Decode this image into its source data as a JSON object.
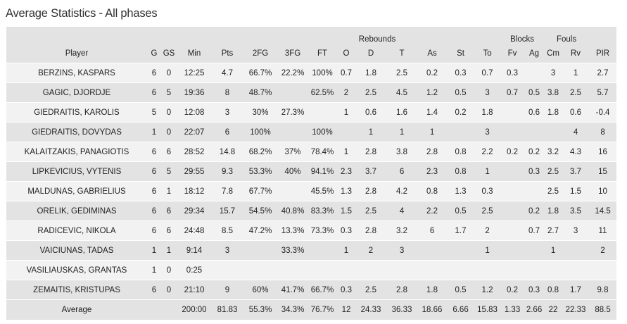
{
  "title": "Average Statistics - All phases",
  "groups": {
    "rebounds": "Rebounds",
    "blocks": "Blocks",
    "fouls": "Fouls"
  },
  "columns": [
    "Player",
    "G",
    "GS",
    "Min",
    "Pts",
    "2FG",
    "3FG",
    "FT",
    "O",
    "D",
    "T",
    "As",
    "St",
    "To",
    "Fv",
    "Ag",
    "Cm",
    "Rv",
    "PIR"
  ],
  "rows": [
    [
      "BERZINS, KASPARS",
      "6",
      "0",
      "12:25",
      "4.7",
      "66.7%",
      "22.2%",
      "100%",
      "0.7",
      "1.8",
      "2.5",
      "0.2",
      "0.3",
      "0.7",
      "0.3",
      "",
      "3",
      "1",
      "2.7"
    ],
    [
      "GAGIC, DJORDJE",
      "6",
      "5",
      "19:36",
      "8",
      "48.7%",
      "",
      "62.5%",
      "2",
      "2.5",
      "4.5",
      "1.2",
      "0.5",
      "3",
      "0.7",
      "0.5",
      "3.8",
      "2.5",
      "5.7"
    ],
    [
      "GIEDRAITIS, KAROLIS",
      "5",
      "0",
      "12:08",
      "3",
      "30%",
      "27.3%",
      "",
      "1",
      "0.6",
      "1.6",
      "1.4",
      "0.2",
      "1.8",
      "",
      "0.6",
      "1.8",
      "0.6",
      "-0.4"
    ],
    [
      "GIEDRAITIS, DOVYDAS",
      "1",
      "0",
      "22:07",
      "6",
      "100%",
      "",
      "100%",
      "",
      "1",
      "1",
      "1",
      "",
      "3",
      "",
      "",
      "",
      "4",
      "8"
    ],
    [
      "KALAITZAKIS, PANAGIOTIS",
      "6",
      "6",
      "28:52",
      "14.8",
      "68.2%",
      "37%",
      "78.4%",
      "1",
      "2.8",
      "3.8",
      "2.8",
      "0.8",
      "2.2",
      "0.2",
      "0.2",
      "3.2",
      "4.3",
      "16"
    ],
    [
      "LIPKEVICIUS, VYTENIS",
      "6",
      "5",
      "29:55",
      "9.3",
      "53.3%",
      "40%",
      "94.1%",
      "2.3",
      "3.7",
      "6",
      "2.3",
      "0.8",
      "1",
      "",
      "0.3",
      "2.5",
      "3.7",
      "15"
    ],
    [
      "MALDUNAS, GABRIELIUS",
      "6",
      "1",
      "18:12",
      "7.8",
      "67.7%",
      "",
      "45.5%",
      "1.3",
      "2.8",
      "4.2",
      "0.8",
      "1.3",
      "0.3",
      "",
      "",
      "2.5",
      "1.5",
      "10"
    ],
    [
      "ORELIK, GEDIMINAS",
      "6",
      "6",
      "29:34",
      "15.7",
      "54.5%",
      "40.8%",
      "83.3%",
      "1.5",
      "2.5",
      "4",
      "2.2",
      "0.5",
      "2.5",
      "",
      "0.2",
      "1.8",
      "3.5",
      "14.5"
    ],
    [
      "RADICEVIC, NIKOLA",
      "6",
      "6",
      "24:48",
      "8.5",
      "47.2%",
      "13.3%",
      "73.3%",
      "0.3",
      "2.8",
      "3.2",
      "6",
      "1.7",
      "2",
      "",
      "0.7",
      "2.7",
      "3",
      "11"
    ],
    [
      "VAICIUNAS, TADAS",
      "1",
      "1",
      "9:14",
      "3",
      "",
      "33.3%",
      "",
      "1",
      "2",
      "3",
      "",
      "",
      "1",
      "",
      "",
      "1",
      "",
      "2"
    ],
    [
      "VASILIAUSKAS, GRANTAS",
      "1",
      "0",
      "0:25",
      "",
      "",
      "",
      "",
      "",
      "",
      "",
      "",
      "",
      "",
      "",
      "",
      "",
      "",
      ""
    ],
    [
      "ZEMAITIS, KRISTUPAS",
      "6",
      "0",
      "21:10",
      "9",
      "60%",
      "41.7%",
      "66.7%",
      "0.3",
      "2.5",
      "2.8",
      "1.8",
      "0.5",
      "1.2",
      "0.2",
      "0.3",
      "0.8",
      "1.7",
      "9.8"
    ]
  ],
  "average": [
    "Average",
    "",
    "",
    "200:00",
    "81.83",
    "55.3%",
    "34.3%",
    "76.7%",
    "12",
    "24.33",
    "36.33",
    "18.66",
    "6.66",
    "15.83",
    "1.33",
    "2.66",
    "22",
    "22.33",
    "88.5"
  ]
}
